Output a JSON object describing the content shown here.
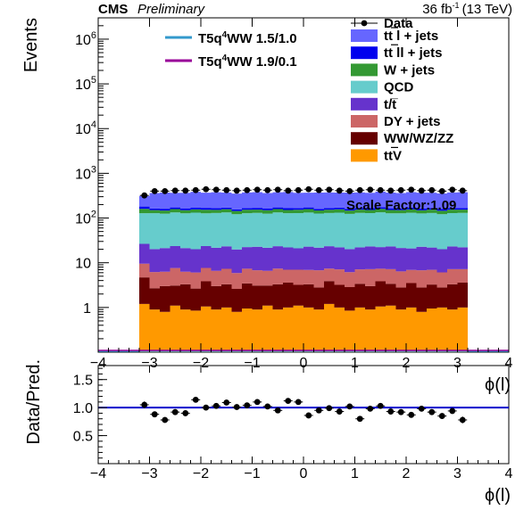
{
  "header": {
    "experiment": "CMS",
    "status": "Preliminary",
    "lumi": "36 fb",
    "lumi_sup": "-1",
    "energy": "(13 TeV)"
  },
  "chart_data": [
    {
      "type": "area",
      "subtype": "stacked-histogram",
      "yscale": "log",
      "ylabel": "Events",
      "xlabel": "ϕ(l)",
      "xlim": [
        -4,
        4
      ],
      "ylim": [
        0.1,
        3000000
      ],
      "xticks": [
        -4,
        -3,
        -2,
        -1,
        0,
        1,
        2,
        3,
        4
      ],
      "yticks": [
        {
          "value": 1,
          "label": "1"
        },
        {
          "value": 10,
          "label": "10"
        },
        {
          "value": 100,
          "label": "10",
          "sup": "2"
        },
        {
          "value": 1000,
          "label": "10",
          "sup": "3"
        },
        {
          "value": 10000,
          "label": "10",
          "sup": "4"
        },
        {
          "value": 100000,
          "label": "10",
          "sup": "5"
        },
        {
          "value": 1000000,
          "label": "10",
          "sup": "6"
        }
      ],
      "legend_position": "top-right",
      "annotation": "Scale Factor:1.09",
      "bins": {
        "low": -3.2,
        "high": 3.2,
        "n": 32
      },
      "stack": [
        {
          "name": "t̅t̅V",
          "label_main": "ttV",
          "color": "#ff9900",
          "values": [
            1.2,
            0.9,
            0.8,
            1.1,
            0.9,
            0.85,
            1.05,
            0.9,
            1.0,
            0.8,
            0.95,
            0.9,
            1.1,
            0.9,
            1.0,
            1.1,
            1.0,
            0.9,
            1.2,
            1.0,
            0.85,
            1.0,
            0.9,
            1.05,
            1.1,
            0.9,
            1.0,
            0.8,
            0.95,
            1.0,
            0.9,
            1.0
          ]
        },
        {
          "name": "WW/WZ/ZZ",
          "color": "#660000",
          "values": [
            3.5,
            1.8,
            2.2,
            2.0,
            2.4,
            1.8,
            2.8,
            2.1,
            2.3,
            1.8,
            2.5,
            2.2,
            2.0,
            2.4,
            2.6,
            2.1,
            2.3,
            1.9,
            2.7,
            2.2,
            2.0,
            2.4,
            2.1,
            2.8,
            2.3,
            1.9,
            2.5,
            2.0,
            2.3,
            1.8,
            2.4,
            2.6
          ]
        },
        {
          "name": "DY + jets",
          "color": "#cc6666",
          "values": [
            4.8,
            3.5,
            3.3,
            4.5,
            3.0,
            3.4,
            3.8,
            3.6,
            4.0,
            3.3,
            3.9,
            3.7,
            3.5,
            4.1,
            3.4,
            3.8,
            3.6,
            4.0,
            3.5,
            3.9,
            3.3,
            3.7,
            4.2,
            3.5,
            3.8,
            3.6,
            3.4,
            4.0,
            3.7,
            3.3,
            3.9,
            3.6
          ]
        },
        {
          "name": "t/t̅",
          "color": "#6633cc",
          "values": [
            17,
            14,
            15,
            16,
            15,
            14,
            16,
            15,
            16,
            14,
            15,
            16,
            15,
            16,
            15,
            14,
            16,
            15,
            16,
            15,
            14,
            15,
            16,
            15,
            16,
            15,
            14,
            16,
            15,
            14,
            16,
            15
          ]
        },
        {
          "name": "QCD",
          "color": "#66cccc",
          "values": [
            102,
            108,
            104,
            110,
            106,
            112,
            104,
            108,
            110,
            102,
            106,
            108,
            104,
            110,
            106,
            108,
            110,
            104,
            106,
            110,
            104,
            108,
            106,
            112,
            104,
            106,
            110,
            104,
            108,
            102,
            106,
            108
          ]
        },
        {
          "name": "W + jets",
          "color": "#339933",
          "values": [
            32,
            22,
            22,
            25,
            22,
            24,
            26,
            23,
            24,
            22,
            25,
            23,
            24,
            25,
            23,
            24,
            26,
            22,
            24,
            25,
            23,
            24,
            22,
            26,
            24,
            23,
            25,
            22,
            24,
            23,
            25,
            24
          ]
        },
        {
          "name": "t̅t̅ ll + jets",
          "label_main": "tt ll + jets",
          "color": "#0000ee",
          "values": [
            20,
            13,
            14,
            14,
            13,
            14,
            15,
            14,
            14,
            13,
            14,
            15,
            13,
            14,
            15,
            14,
            14,
            13,
            15,
            14,
            13,
            14,
            15,
            14,
            14,
            13,
            14,
            15,
            14,
            13,
            14,
            14
          ]
        },
        {
          "name": "t̅t̅ l + jets",
          "label_main": "tt l + jets",
          "color": "#6666ff",
          "values": [
            130,
            200,
            210,
            195,
            205,
            215,
            200,
            210,
            200,
            195,
            205,
            210,
            200,
            205,
            215,
            200,
            195,
            210,
            205,
            200,
            210,
            205,
            200,
            215,
            205,
            200,
            210,
            205,
            200,
            195,
            205,
            210
          ]
        }
      ],
      "data": {
        "name": "Data",
        "marker_color": "#000000",
        "values": [
          320,
          400,
          400,
          410,
          410,
          420,
          440,
          430,
          420,
          410,
          420,
          430,
          420,
          430,
          410,
          420,
          440,
          420,
          430,
          410,
          400,
          420,
          430,
          420,
          410,
          420,
          430,
          410,
          420,
          400,
          430,
          410
        ]
      },
      "signals": [
        {
          "name": "T5q",
          "sup": "4",
          "rest": "WW 1.5/1.0",
          "color": "#3399cc"
        },
        {
          "name": "T5q",
          "sup": "4",
          "rest": "WW 1.9/0.1",
          "color": "#990099"
        }
      ]
    },
    {
      "type": "scatter",
      "subtype": "ratio",
      "ylabel": "Data/Pred.",
      "xlabel": "ϕ(l)",
      "xlim": [
        -4,
        4
      ],
      "ylim": [
        0,
        1.75
      ],
      "xticks": [
        -4,
        -3,
        -2,
        -1,
        0,
        1,
        2,
        3,
        4
      ],
      "yticks": [
        0.5,
        1.0,
        1.5
      ],
      "ytick_labels": [
        "0.5",
        "1.0",
        "1.5"
      ],
      "reference_line": 1.0,
      "reference_color": "#0000cc",
      "x": [
        -3.1,
        -2.9,
        -2.7,
        -2.5,
        -2.3,
        -2.1,
        -1.9,
        -1.7,
        -1.5,
        -1.3,
        -1.1,
        -0.9,
        -0.7,
        -0.5,
        -0.3,
        -0.1,
        0.1,
        0.3,
        0.5,
        0.7,
        0.9,
        1.1,
        1.3,
        1.5,
        1.7,
        1.9,
        2.1,
        2.3,
        2.5,
        2.7,
        2.9,
        3.1
      ],
      "values": [
        1.05,
        0.88,
        0.78,
        0.92,
        0.9,
        1.14,
        1.0,
        1.03,
        1.09,
        1.01,
        1.04,
        1.1,
        1.02,
        0.95,
        1.12,
        1.1,
        0.86,
        0.95,
        0.99,
        0.93,
        1.02,
        0.8,
        0.98,
        1.03,
        0.93,
        0.92,
        0.87,
        0.98,
        0.92,
        0.85,
        0.94,
        0.78
      ],
      "errors": [
        0.06,
        0.05,
        0.05,
        0.05,
        0.05,
        0.05,
        0.05,
        0.05,
        0.05,
        0.05,
        0.05,
        0.05,
        0.05,
        0.05,
        0.05,
        0.05,
        0.05,
        0.05,
        0.05,
        0.05,
        0.05,
        0.05,
        0.05,
        0.05,
        0.05,
        0.05,
        0.05,
        0.05,
        0.05,
        0.05,
        0.05,
        0.06
      ]
    }
  ]
}
